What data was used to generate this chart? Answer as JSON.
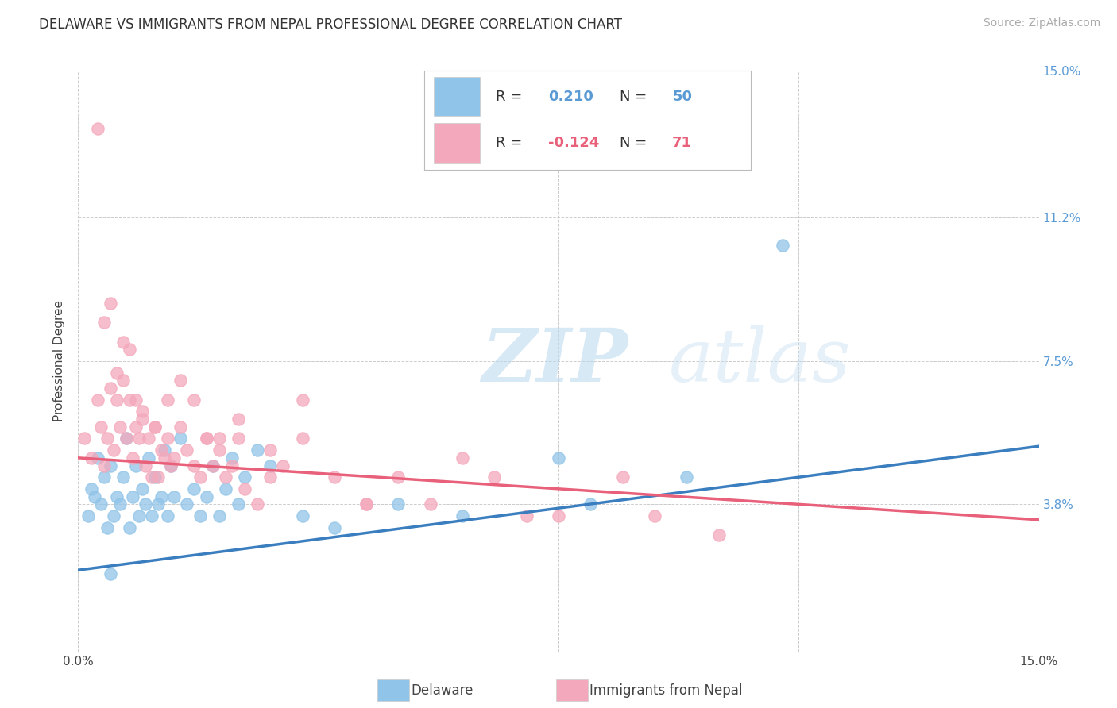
{
  "title": "DELAWARE VS IMMIGRANTS FROM NEPAL PROFESSIONAL DEGREE CORRELATION CHART",
  "source": "Source: ZipAtlas.com",
  "ylabel": "Professional Degree",
  "xlim": [
    0.0,
    15.0
  ],
  "ylim": [
    0.0,
    15.0
  ],
  "ytick_vals": [
    0.0,
    3.8,
    7.5,
    11.2,
    15.0
  ],
  "ytick_labels": [
    "",
    "3.8%",
    "7.5%",
    "11.2%",
    "15.0%"
  ],
  "xtick_vals": [
    0.0,
    3.75,
    7.5,
    11.25,
    15.0
  ],
  "xtick_labels": [
    "0.0%",
    "",
    "",
    "",
    "15.0%"
  ],
  "r1": 0.21,
  "n1": 50,
  "r2": -0.124,
  "n2": 71,
  "blue_color": "#90c4e8",
  "pink_color": "#f4a8bb",
  "blue_line_color": "#3a7ebf",
  "pink_line_color": "#e8607a",
  "blue_trend": [
    2.1,
    5.3
  ],
  "pink_trend": [
    5.0,
    3.4
  ],
  "watermark_zip": "ZIP",
  "watermark_atlas": "atlas",
  "grid_color": "#cccccc",
  "background_color": "#ffffff",
  "title_fontsize": 12,
  "axis_label_fontsize": 11,
  "tick_fontsize": 11,
  "legend_fontsize": 13,
  "source_fontsize": 10,
  "blue_scatter_x": [
    0.15,
    0.2,
    0.25,
    0.3,
    0.35,
    0.4,
    0.45,
    0.5,
    0.55,
    0.6,
    0.65,
    0.7,
    0.75,
    0.8,
    0.85,
    0.9,
    0.95,
    1.0,
    1.05,
    1.1,
    1.15,
    1.2,
    1.25,
    1.3,
    1.35,
    1.4,
    1.45,
    1.5,
    1.6,
    1.7,
    1.8,
    1.9,
    2.0,
    2.1,
    2.2,
    2.3,
    2.4,
    2.5,
    2.6,
    2.8,
    3.0,
    3.5,
    4.0,
    5.0,
    6.0,
    7.5,
    8.0,
    9.5,
    11.0,
    0.5
  ],
  "blue_scatter_y": [
    3.5,
    4.2,
    4.0,
    5.0,
    3.8,
    4.5,
    3.2,
    4.8,
    3.5,
    4.0,
    3.8,
    4.5,
    5.5,
    3.2,
    4.0,
    4.8,
    3.5,
    4.2,
    3.8,
    5.0,
    3.5,
    4.5,
    3.8,
    4.0,
    5.2,
    3.5,
    4.8,
    4.0,
    5.5,
    3.8,
    4.2,
    3.5,
    4.0,
    4.8,
    3.5,
    4.2,
    5.0,
    3.8,
    4.5,
    5.2,
    4.8,
    3.5,
    3.2,
    3.8,
    3.5,
    5.0,
    3.8,
    4.5,
    10.5,
    2.0
  ],
  "pink_scatter_x": [
    0.1,
    0.2,
    0.3,
    0.35,
    0.4,
    0.45,
    0.5,
    0.55,
    0.6,
    0.65,
    0.7,
    0.75,
    0.8,
    0.85,
    0.9,
    0.95,
    1.0,
    1.05,
    1.1,
    1.15,
    1.2,
    1.25,
    1.3,
    1.35,
    1.4,
    1.45,
    1.5,
    1.6,
    1.7,
    1.8,
    1.9,
    2.0,
    2.1,
    2.2,
    2.3,
    2.4,
    2.5,
    2.6,
    2.8,
    3.0,
    3.2,
    3.5,
    4.0,
    4.5,
    5.0,
    6.0,
    7.0,
    8.5,
    9.0,
    10.0,
    0.4,
    0.5,
    0.6,
    0.7,
    0.8,
    0.9,
    1.0,
    1.2,
    1.4,
    1.6,
    2.0,
    2.5,
    3.0,
    3.5,
    5.5,
    6.5,
    7.5,
    1.8,
    2.2,
    4.5,
    0.3
  ],
  "pink_scatter_y": [
    5.5,
    5.0,
    6.5,
    5.8,
    4.8,
    5.5,
    6.8,
    5.2,
    7.2,
    5.8,
    8.0,
    5.5,
    6.5,
    5.0,
    5.8,
    5.5,
    6.0,
    4.8,
    5.5,
    4.5,
    5.8,
    4.5,
    5.2,
    5.0,
    5.5,
    4.8,
    5.0,
    5.8,
    5.2,
    4.8,
    4.5,
    5.5,
    4.8,
    5.2,
    4.5,
    4.8,
    5.5,
    4.2,
    3.8,
    4.5,
    4.8,
    5.5,
    4.5,
    3.8,
    4.5,
    5.0,
    3.5,
    4.5,
    3.5,
    3.0,
    8.5,
    9.0,
    6.5,
    7.0,
    7.8,
    6.5,
    6.2,
    5.8,
    6.5,
    7.0,
    5.5,
    6.0,
    5.2,
    6.5,
    3.8,
    4.5,
    3.5,
    6.5,
    5.5,
    3.8,
    13.5
  ]
}
